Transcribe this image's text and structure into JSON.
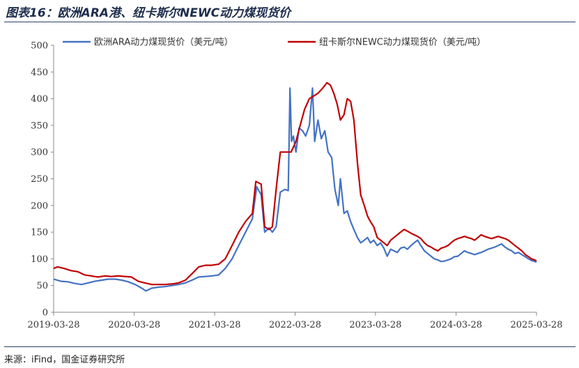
{
  "header": {
    "title": "图表16：欧洲ARA港、纽卡斯尔NEWC动力煤现货价"
  },
  "footer": {
    "source": "来源：iFind，国金证券研究所"
  },
  "chart_data": {
    "type": "line",
    "ylim": [
      0,
      500
    ],
    "yticks": [
      "0",
      "50",
      "100",
      "150",
      "200",
      "250",
      "300",
      "350",
      "400",
      "450",
      "500"
    ],
    "xticks": [
      "2019-03-28",
      "2020-03-28",
      "2021-03-28",
      "2022-03-28",
      "2023-03-28",
      "2024-03-28",
      "2025-03-28"
    ],
    "xrange": [
      "2019-03-28",
      "2025-03-28"
    ],
    "legend_position": "top",
    "series": [
      {
        "name": "欧洲ARA动力煤现货价（美元/吨）",
        "color": "#4472c4",
        "points": [
          [
            "2019-03-28",
            62
          ],
          [
            "2019-05-01",
            58
          ],
          [
            "2019-06-01",
            57
          ],
          [
            "2019-07-01",
            54
          ],
          [
            "2019-08-01",
            52
          ],
          [
            "2019-09-01",
            55
          ],
          [
            "2019-10-01",
            58
          ],
          [
            "2019-11-01",
            60
          ],
          [
            "2019-12-01",
            62
          ],
          [
            "2020-01-01",
            62
          ],
          [
            "2020-02-01",
            60
          ],
          [
            "2020-03-01",
            57
          ],
          [
            "2020-04-01",
            52
          ],
          [
            "2020-05-01",
            45
          ],
          [
            "2020-05-20",
            40
          ],
          [
            "2020-06-15",
            45
          ],
          [
            "2020-07-15",
            47
          ],
          [
            "2020-08-15",
            48
          ],
          [
            "2020-09-15",
            50
          ],
          [
            "2020-10-15",
            52
          ],
          [
            "2020-11-15",
            55
          ],
          [
            "2020-12-15",
            60
          ],
          [
            "2021-01-15",
            66
          ],
          [
            "2021-02-15",
            67
          ],
          [
            "2021-03-15",
            68
          ],
          [
            "2021-04-15",
            70
          ],
          [
            "2021-05-15",
            82
          ],
          [
            "2021-06-15",
            100
          ],
          [
            "2021-07-15",
            125
          ],
          [
            "2021-08-15",
            150
          ],
          [
            "2021-09-15",
            175
          ],
          [
            "2021-10-05",
            235
          ],
          [
            "2021-10-25",
            220
          ],
          [
            "2021-11-10",
            150
          ],
          [
            "2021-11-30",
            158
          ],
          [
            "2021-12-15",
            150
          ],
          [
            "2022-01-01",
            160
          ],
          [
            "2022-01-20",
            225
          ],
          [
            "2022-02-10",
            230
          ],
          [
            "2022-02-25",
            228
          ],
          [
            "2022-03-05",
            420
          ],
          [
            "2022-03-12",
            320
          ],
          [
            "2022-03-20",
            330
          ],
          [
            "2022-04-01",
            300
          ],
          [
            "2022-04-15",
            345
          ],
          [
            "2022-05-01",
            340
          ],
          [
            "2022-05-15",
            330
          ],
          [
            "2022-06-01",
            350
          ],
          [
            "2022-06-15",
            420
          ],
          [
            "2022-06-25",
            320
          ],
          [
            "2022-07-10",
            360
          ],
          [
            "2022-07-25",
            325
          ],
          [
            "2022-08-10",
            340
          ],
          [
            "2022-08-25",
            300
          ],
          [
            "2022-09-10",
            290
          ],
          [
            "2022-09-25",
            230
          ],
          [
            "2022-10-10",
            200
          ],
          [
            "2022-10-20",
            250
          ],
          [
            "2022-11-05",
            185
          ],
          [
            "2022-11-20",
            190
          ],
          [
            "2022-12-05",
            170
          ],
          [
            "2022-12-20",
            155
          ],
          [
            "2023-01-05",
            140
          ],
          [
            "2023-01-20",
            130
          ],
          [
            "2023-02-05",
            135
          ],
          [
            "2023-02-20",
            140
          ],
          [
            "2023-03-05",
            130
          ],
          [
            "2023-03-20",
            135
          ],
          [
            "2023-04-05",
            125
          ],
          [
            "2023-04-20",
            130
          ],
          [
            "2023-05-05",
            120
          ],
          [
            "2023-05-20",
            105
          ],
          [
            "2023-06-05",
            118
          ],
          [
            "2023-06-20",
            115
          ],
          [
            "2023-07-05",
            112
          ],
          [
            "2023-07-20",
            120
          ],
          [
            "2023-08-05",
            122
          ],
          [
            "2023-08-20",
            118
          ],
          [
            "2023-09-05",
            125
          ],
          [
            "2023-09-20",
            130
          ],
          [
            "2023-10-05",
            135
          ],
          [
            "2023-10-20",
            125
          ],
          [
            "2023-11-05",
            115
          ],
          [
            "2023-11-20",
            110
          ],
          [
            "2023-12-05",
            105
          ],
          [
            "2023-12-20",
            100
          ],
          [
            "2024-01-05",
            98
          ],
          [
            "2024-01-20",
            95
          ],
          [
            "2024-02-05",
            96
          ],
          [
            "2024-02-20",
            98
          ],
          [
            "2024-03-05",
            100
          ],
          [
            "2024-03-20",
            104
          ],
          [
            "2024-04-05",
            105
          ],
          [
            "2024-04-20",
            110
          ],
          [
            "2024-05-05",
            115
          ],
          [
            "2024-05-20",
            112
          ],
          [
            "2024-06-05",
            110
          ],
          [
            "2024-06-20",
            108
          ],
          [
            "2024-07-05",
            110
          ],
          [
            "2024-07-20",
            112
          ],
          [
            "2024-08-05",
            115
          ],
          [
            "2024-08-20",
            118
          ],
          [
            "2024-09-05",
            120
          ],
          [
            "2024-09-20",
            122
          ],
          [
            "2024-10-05",
            125
          ],
          [
            "2024-10-20",
            128
          ],
          [
            "2024-11-05",
            122
          ],
          [
            "2024-11-20",
            118
          ],
          [
            "2024-12-05",
            115
          ],
          [
            "2024-12-20",
            110
          ],
          [
            "2025-01-05",
            112
          ],
          [
            "2025-01-20",
            108
          ],
          [
            "2025-02-05",
            104
          ],
          [
            "2025-02-20",
            100
          ],
          [
            "2025-03-05",
            97
          ],
          [
            "2025-03-20",
            95
          ],
          [
            "2025-03-28",
            94
          ]
        ]
      },
      {
        "name": "纽卡斯尔NEWC动力煤现货价（美元/吨）",
        "color": "#c00000",
        "points": [
          [
            "2019-03-28",
            82
          ],
          [
            "2019-04-15",
            85
          ],
          [
            "2019-05-15",
            82
          ],
          [
            "2019-06-15",
            78
          ],
          [
            "2019-07-15",
            76
          ],
          [
            "2019-08-15",
            70
          ],
          [
            "2019-09-15",
            68
          ],
          [
            "2019-10-15",
            66
          ],
          [
            "2019-11-15",
            68
          ],
          [
            "2019-12-15",
            67
          ],
          [
            "2020-01-15",
            68
          ],
          [
            "2020-02-15",
            67
          ],
          [
            "2020-03-15",
            66
          ],
          [
            "2020-04-15",
            58
          ],
          [
            "2020-05-15",
            55
          ],
          [
            "2020-06-15",
            52
          ],
          [
            "2020-07-15",
            52
          ],
          [
            "2020-08-15",
            52
          ],
          [
            "2020-09-15",
            53
          ],
          [
            "2020-10-15",
            55
          ],
          [
            "2020-11-15",
            60
          ],
          [
            "2020-12-15",
            72
          ],
          [
            "2021-01-15",
            85
          ],
          [
            "2021-02-15",
            88
          ],
          [
            "2021-03-15",
            88
          ],
          [
            "2021-04-15",
            90
          ],
          [
            "2021-05-15",
            100
          ],
          [
            "2021-06-15",
            125
          ],
          [
            "2021-07-15",
            150
          ],
          [
            "2021-08-15",
            170
          ],
          [
            "2021-09-15",
            185
          ],
          [
            "2021-10-01",
            245
          ],
          [
            "2021-10-25",
            240
          ],
          [
            "2021-11-10",
            160
          ],
          [
            "2021-11-30",
            155
          ],
          [
            "2021-12-15",
            160
          ],
          [
            "2022-01-01",
            230
          ],
          [
            "2022-01-20",
            300
          ],
          [
            "2022-02-10",
            300
          ],
          [
            "2022-02-25",
            300
          ],
          [
            "2022-03-10",
            300
          ],
          [
            "2022-04-01",
            320
          ],
          [
            "2022-04-20",
            350
          ],
          [
            "2022-05-10",
            380
          ],
          [
            "2022-06-01",
            400
          ],
          [
            "2022-06-20",
            405
          ],
          [
            "2022-07-10",
            410
          ],
          [
            "2022-08-01",
            420
          ],
          [
            "2022-08-20",
            430
          ],
          [
            "2022-09-05",
            425
          ],
          [
            "2022-09-20",
            410
          ],
          [
            "2022-10-05",
            390
          ],
          [
            "2022-10-20",
            360
          ],
          [
            "2022-11-05",
            370
          ],
          [
            "2022-11-20",
            400
          ],
          [
            "2022-12-05",
            395
          ],
          [
            "2022-12-20",
            360
          ],
          [
            "2023-01-05",
            280
          ],
          [
            "2023-01-20",
            220
          ],
          [
            "2023-02-05",
            200
          ],
          [
            "2023-02-20",
            180
          ],
          [
            "2023-03-05",
            170
          ],
          [
            "2023-03-20",
            160
          ],
          [
            "2023-04-05",
            140
          ],
          [
            "2023-04-20",
            135
          ],
          [
            "2023-05-05",
            130
          ],
          [
            "2023-05-20",
            125
          ],
          [
            "2023-06-05",
            135
          ],
          [
            "2023-06-20",
            140
          ],
          [
            "2023-07-05",
            145
          ],
          [
            "2023-07-20",
            150
          ],
          [
            "2023-08-05",
            155
          ],
          [
            "2023-08-20",
            152
          ],
          [
            "2023-09-05",
            148
          ],
          [
            "2023-09-20",
            145
          ],
          [
            "2023-10-05",
            142
          ],
          [
            "2023-10-20",
            138
          ],
          [
            "2023-11-05",
            130
          ],
          [
            "2023-11-20",
            125
          ],
          [
            "2023-12-05",
            122
          ],
          [
            "2023-12-20",
            118
          ],
          [
            "2024-01-05",
            115
          ],
          [
            "2024-01-20",
            120
          ],
          [
            "2024-02-05",
            122
          ],
          [
            "2024-02-20",
            125
          ],
          [
            "2024-03-05",
            130
          ],
          [
            "2024-03-20",
            135
          ],
          [
            "2024-04-05",
            138
          ],
          [
            "2024-04-20",
            140
          ],
          [
            "2024-05-05",
            142
          ],
          [
            "2024-05-20",
            140
          ],
          [
            "2024-06-05",
            138
          ],
          [
            "2024-06-20",
            135
          ],
          [
            "2024-07-05",
            140
          ],
          [
            "2024-07-20",
            145
          ],
          [
            "2024-08-05",
            142
          ],
          [
            "2024-08-20",
            140
          ],
          [
            "2024-09-05",
            138
          ],
          [
            "2024-09-20",
            140
          ],
          [
            "2024-10-05",
            142
          ],
          [
            "2024-10-20",
            140
          ],
          [
            "2024-11-05",
            138
          ],
          [
            "2024-11-20",
            135
          ],
          [
            "2024-12-05",
            130
          ],
          [
            "2024-12-20",
            125
          ],
          [
            "2025-01-05",
            120
          ],
          [
            "2025-01-20",
            115
          ],
          [
            "2025-02-05",
            108
          ],
          [
            "2025-02-20",
            104
          ],
          [
            "2025-03-05",
            100
          ],
          [
            "2025-03-20",
            98
          ],
          [
            "2025-03-28",
            96
          ]
        ]
      }
    ]
  }
}
